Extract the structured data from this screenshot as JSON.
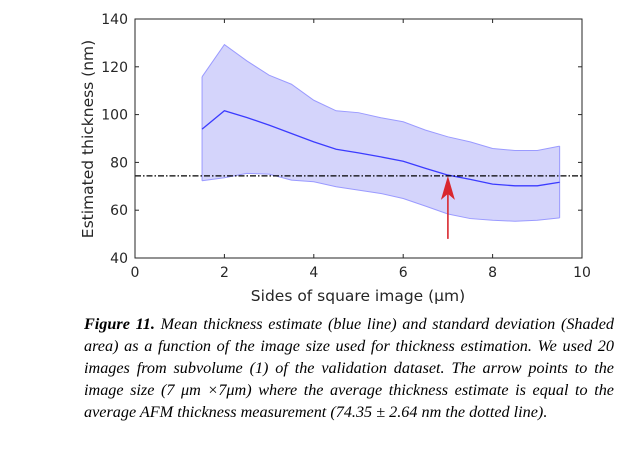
{
  "chart_data": {
    "type": "area",
    "xlabel": "Sides of square image (μm)",
    "ylabel": "Estimated thickness (nm)",
    "xlim": [
      0,
      10
    ],
    "ylim": [
      40,
      140
    ],
    "xticks": [
      "0",
      "2",
      "4",
      "6",
      "8",
      "10"
    ],
    "yticks": [
      "40",
      "60",
      "80",
      "100",
      "120",
      "140"
    ],
    "x": [
      1.5,
      2,
      2.5,
      3,
      3.5,
      4,
      4.5,
      5,
      5.5,
      6,
      6.5,
      7,
      7.5,
      8,
      8.5,
      9,
      9.5
    ],
    "series": [
      {
        "name": "Mean thickness estimate",
        "color": "#3b3bff",
        "values": [
          93.9,
          101.6,
          98.8,
          95.6,
          92.1,
          88.6,
          85.5,
          84.0,
          82.3,
          80.5,
          77.5,
          74.7,
          72.9,
          70.9,
          70.2,
          70.2,
          71.7
        ]
      },
      {
        "name": "Upper std bound",
        "color": "#9a9aff",
        "values": [
          115.8,
          129.3,
          122.5,
          116.5,
          112.7,
          106.0,
          101.6,
          100.8,
          98.7,
          97.0,
          93.5,
          90.7,
          88.6,
          85.8,
          85.0,
          85.0,
          86.8
        ]
      },
      {
        "name": "Lower std bound",
        "color": "#9a9aff",
        "values": [
          72.3,
          73.6,
          75.4,
          75.1,
          72.6,
          71.9,
          69.8,
          68.4,
          67.0,
          64.9,
          61.7,
          58.4,
          56.5,
          55.8,
          55.4,
          55.8,
          56.8
        ]
      }
    ],
    "shade_color": "#d4d4fb",
    "reference_line": {
      "value": 74.35,
      "style": "dash-dot",
      "color": "#000000"
    },
    "arrow": {
      "x": 7,
      "from_y": 48,
      "to_y": 74.35,
      "color": "#d9272e"
    }
  },
  "caption": {
    "label": "Figure 11.",
    "text": "Mean thickness estimate (blue line) and standard deviation (Shaded area) as a function of the image size used for thickness estimation. We used 20 images from subvolume (1) of the validation dataset. The arrow points to the image size (7 μm ×7μm) where the average thickness estimate is equal to the average AFM thickness measurement (74.35 ± 2.64 nm the dotted line)."
  }
}
